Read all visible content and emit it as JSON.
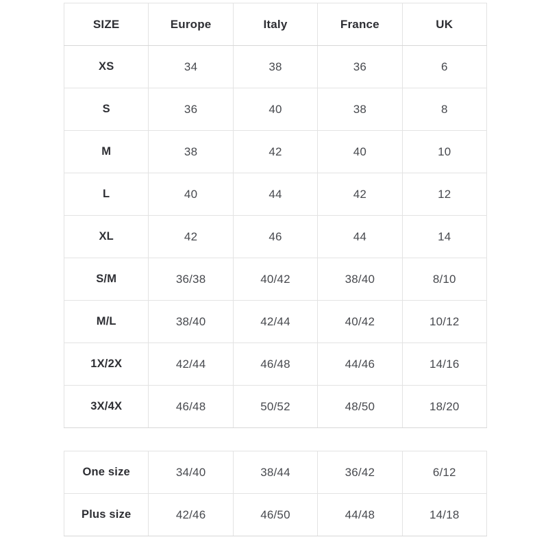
{
  "size_chart": {
    "columns": [
      "SIZE",
      "Europe",
      "Italy",
      "France",
      "UK"
    ],
    "main_table": {
      "rows": [
        {
          "size": "XS",
          "values": [
            "34",
            "38",
            "36",
            "6"
          ]
        },
        {
          "size": "S",
          "values": [
            "36",
            "40",
            "38",
            "8"
          ]
        },
        {
          "size": "M",
          "values": [
            "38",
            "42",
            "40",
            "10"
          ]
        },
        {
          "size": "L",
          "values": [
            "40",
            "44",
            "42",
            "12"
          ]
        },
        {
          "size": "XL",
          "values": [
            "42",
            "46",
            "44",
            "14"
          ]
        },
        {
          "size": "S/M",
          "values": [
            "36/38",
            "40/42",
            "38/40",
            "8/10"
          ]
        },
        {
          "size": "M/L",
          "values": [
            "38/40",
            "42/44",
            "40/42",
            "10/12"
          ]
        },
        {
          "size": "1X/2X",
          "values": [
            "42/44",
            "46/48",
            "44/46",
            "14/16"
          ]
        },
        {
          "size": "3X/4X",
          "values": [
            "46/48",
            "50/52",
            "48/50",
            "18/20"
          ]
        }
      ]
    },
    "special_table": {
      "rows": [
        {
          "size": "One size",
          "values": [
            "34/40",
            "38/44",
            "36/42",
            "6/12"
          ]
        },
        {
          "size": "Plus size",
          "values": [
            "42/46",
            "46/50",
            "44/48",
            "14/18"
          ]
        }
      ]
    },
    "colors": {
      "border": "#e3e3e3",
      "header_text": "#2d2e33",
      "cell_text": "#47494e",
      "background": "#ffffff"
    }
  }
}
